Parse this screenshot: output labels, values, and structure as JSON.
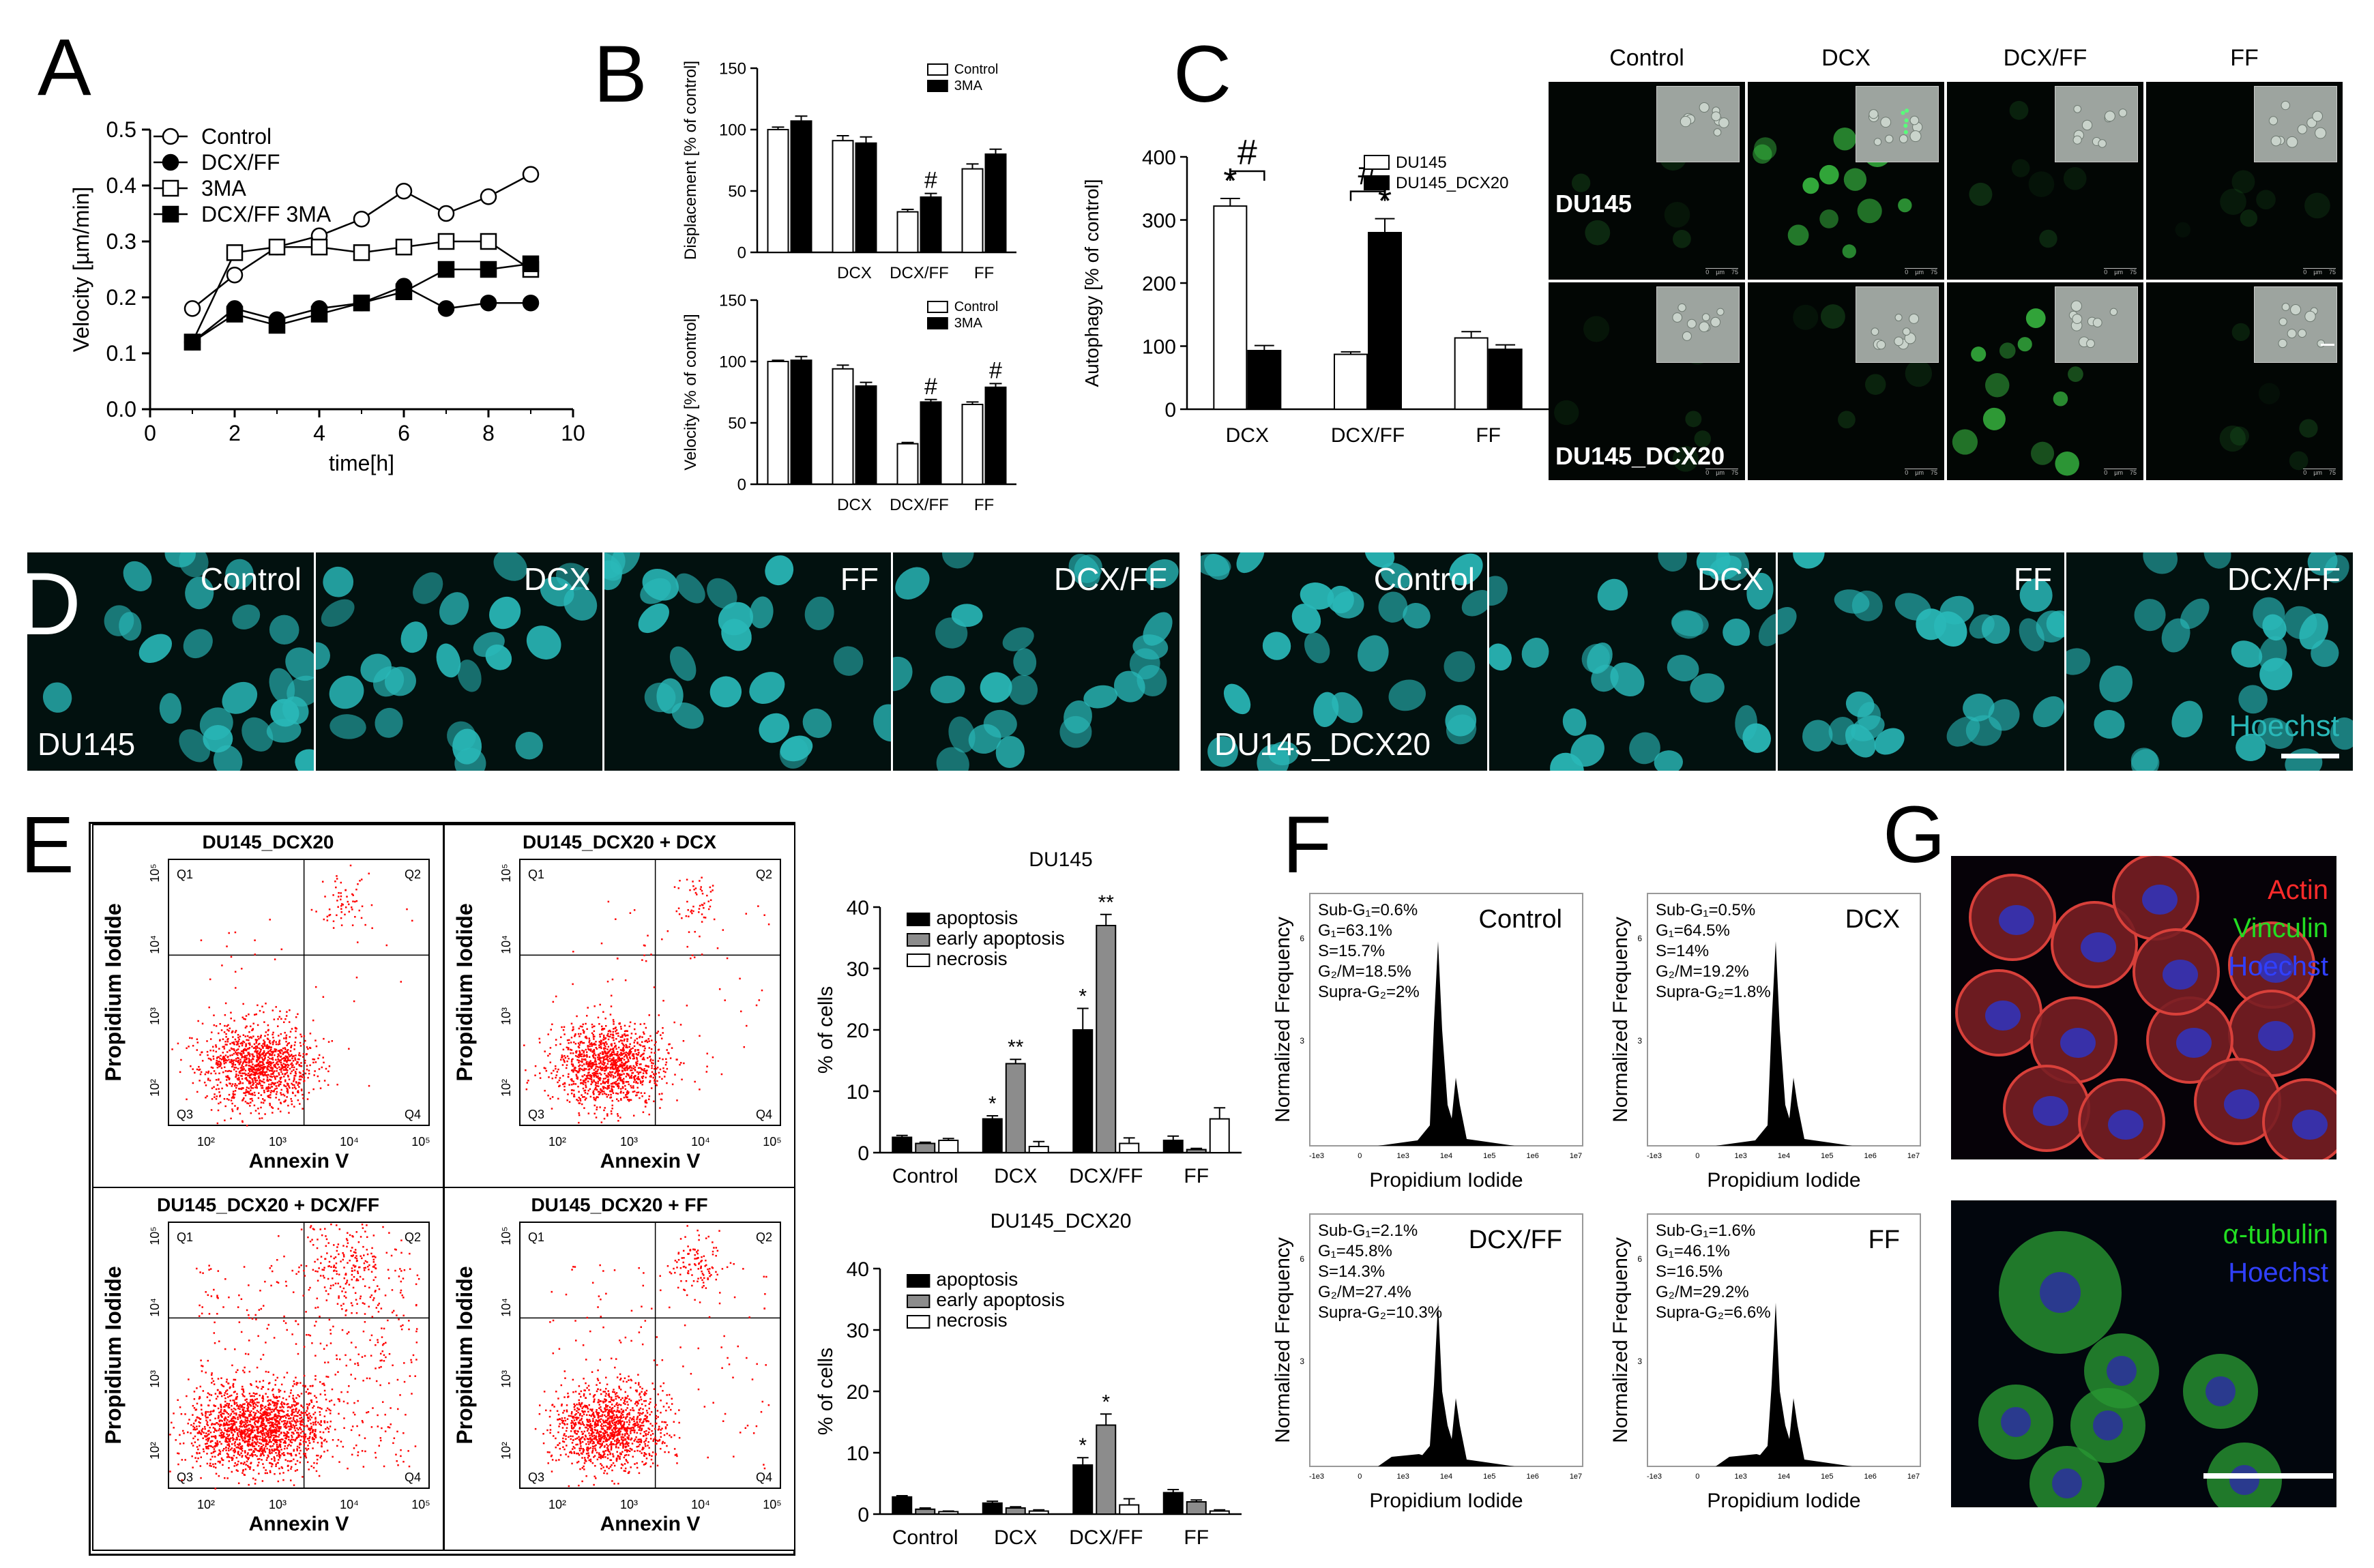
{
  "panels": {
    "A": "A",
    "B": "B",
    "C": "C",
    "D": "D",
    "E": "E",
    "F": "F",
    "G": "G"
  },
  "chart_data": [
    {
      "id": "A",
      "type": "line",
      "xlabel": "time[h]",
      "ylabel": "Velocity [µm/min]",
      "xlim": [
        0,
        10
      ],
      "ylim": [
        0,
        0.5
      ],
      "xticks": [
        0,
        2,
        4,
        6,
        8,
        10
      ],
      "yticks": [
        0.0,
        0.1,
        0.2,
        0.3,
        0.4,
        0.5
      ],
      "legend_position": "top-left",
      "series": [
        {
          "name": "Control",
          "marker": "open-circle",
          "x": [
            1,
            2,
            3,
            4,
            5,
            6,
            7,
            8,
            9
          ],
          "y": [
            0.18,
            0.24,
            0.29,
            0.31,
            0.34,
            0.39,
            0.35,
            0.38,
            0.42
          ]
        },
        {
          "name": "DCX/FF",
          "marker": "filled-circle",
          "x": [
            1,
            2,
            3,
            4,
            5,
            6,
            7,
            8,
            9
          ],
          "y": [
            0.12,
            0.18,
            0.16,
            0.18,
            0.19,
            0.22,
            0.18,
            0.19,
            0.19
          ]
        },
        {
          "name": "3MA",
          "marker": "open-square",
          "x": [
            1,
            2,
            3,
            4,
            5,
            6,
            7,
            8,
            9
          ],
          "y": [
            0.12,
            0.28,
            0.29,
            0.29,
            0.28,
            0.29,
            0.3,
            0.3,
            0.25
          ]
        },
        {
          "name": "DCX/FF 3MA",
          "marker": "filled-square",
          "x": [
            1,
            2,
            3,
            4,
            5,
            6,
            7,
            8,
            9
          ],
          "y": [
            0.12,
            0.17,
            0.15,
            0.17,
            0.19,
            0.21,
            0.25,
            0.25,
            0.26
          ]
        }
      ]
    },
    {
      "id": "B-top",
      "type": "bar",
      "ylabel": "Displacement [% of control]",
      "ylim": [
        0,
        150
      ],
      "yticks": [
        0,
        50,
        100,
        150
      ],
      "groups": [
        "",
        "DCX",
        "DCX/FF",
        "FF"
      ],
      "legend_position": "top-right",
      "series": [
        {
          "name": "Control",
          "values": [
            100,
            91,
            33,
            68
          ],
          "errors": [
            2,
            4,
            2,
            4
          ]
        },
        {
          "name": "3MA",
          "values": [
            107,
            89,
            45,
            80
          ],
          "errors": [
            4,
            5,
            3,
            4
          ]
        }
      ],
      "annotations": [
        {
          "group": 2,
          "series": 1,
          "text": "#"
        }
      ]
    },
    {
      "id": "B-bottom",
      "type": "bar",
      "ylabel": "Velocity [% of control]",
      "ylim": [
        0,
        150
      ],
      "yticks": [
        0,
        50,
        100,
        150
      ],
      "groups": [
        "",
        "DCX",
        "DCX/FF",
        "FF"
      ],
      "legend_position": "top-right",
      "series": [
        {
          "name": "Control",
          "values": [
            100,
            94,
            33,
            65
          ],
          "errors": [
            1,
            3,
            1,
            2
          ]
        },
        {
          "name": "3MA",
          "values": [
            101,
            80,
            67,
            79
          ],
          "errors": [
            3,
            3,
            2,
            3
          ]
        }
      ],
      "annotations": [
        {
          "group": 2,
          "series": 1,
          "text": "#"
        },
        {
          "group": 3,
          "series": 1,
          "text": "#"
        }
      ]
    },
    {
      "id": "C",
      "type": "bar",
      "ylabel": "Autophagy [% of control]",
      "ylim": [
        0,
        400
      ],
      "yticks": [
        0,
        100,
        200,
        300,
        400
      ],
      "groups": [
        "DCX",
        "DCX/FF",
        "FF"
      ],
      "legend_position": "top-right",
      "series": [
        {
          "name": "DU145",
          "values": [
            322,
            87,
            113
          ],
          "errors": [
            12,
            4,
            10
          ]
        },
        {
          "name": "DU145_DCX20",
          "values": [
            93,
            280,
            95
          ],
          "errors": [
            8,
            22,
            7
          ]
        }
      ],
      "annotations": [
        {
          "group": 0,
          "series": 0,
          "text": "*"
        },
        {
          "group": 1,
          "series": 1,
          "text": "*"
        },
        {
          "bracket": "group0",
          "text": "#"
        },
        {
          "bracket": "group1",
          "text": "#"
        }
      ]
    },
    {
      "id": "E-DU145",
      "type": "bar",
      "title": "DU145",
      "ylabel": "% of cells",
      "ylim": [
        0,
        40
      ],
      "yticks": [
        0,
        10,
        20,
        30,
        40
      ],
      "groups": [
        "Control",
        "DCX",
        "DCX/FF",
        "FF"
      ],
      "legend_position": "top-left",
      "series": [
        {
          "name": "apoptosis",
          "values": [
            2.5,
            5.5,
            20,
            2
          ],
          "errors": [
            0.3,
            0.5,
            3.5,
            0.7
          ]
        },
        {
          "name": "early apoptosis",
          "values": [
            1.5,
            14.5,
            37,
            0.5
          ],
          "errors": [
            0.2,
            0.7,
            1.8,
            0.2
          ]
        },
        {
          "name": "necrosis",
          "values": [
            2,
            1,
            1.5,
            5.5
          ],
          "errors": [
            0.3,
            0.8,
            0.9,
            1.8
          ]
        }
      ],
      "annotations": [
        {
          "group": 1,
          "series": 0,
          "text": "*"
        },
        {
          "group": 1,
          "series": 1,
          "text": "**"
        },
        {
          "group": 2,
          "series": 0,
          "text": "*"
        },
        {
          "group": 2,
          "series": 1,
          "text": "**"
        }
      ]
    },
    {
      "id": "E-DU145_DCX20",
      "type": "bar",
      "title": "DU145_DCX20",
      "ylabel": "% of cells",
      "ylim": [
        0,
        40
      ],
      "yticks": [
        0,
        10,
        20,
        30,
        40
      ],
      "groups": [
        "Control",
        "DCX",
        "DCX/FF",
        "FF"
      ],
      "legend_position": "top-left",
      "series": [
        {
          "name": "apoptosis",
          "values": [
            2.8,
            1.8,
            8,
            3.5
          ],
          "errors": [
            0.2,
            0.3,
            1.2,
            0.5
          ]
        },
        {
          "name": "early apoptosis",
          "values": [
            0.8,
            1,
            14.5,
            2
          ],
          "errors": [
            0.2,
            0.2,
            1.8,
            0.3
          ]
        },
        {
          "name": "necrosis",
          "values": [
            0.4,
            0.5,
            1.5,
            0.5
          ],
          "errors": [
            0.1,
            0.2,
            1,
            0.2
          ]
        }
      ],
      "annotations": [
        {
          "group": 2,
          "series": 0,
          "text": "*"
        },
        {
          "group": 2,
          "series": 1,
          "text": "*"
        }
      ]
    }
  ],
  "panelC_micro": {
    "columns": [
      "Control",
      "DCX",
      "DCX/FF",
      "FF"
    ],
    "rows": [
      "DU145",
      "DU145_DCX20"
    ],
    "scale_text": "0    µm    75"
  },
  "panelD": {
    "groups": [
      {
        "cell_line": "DU145",
        "conditions": [
          "Control",
          "DCX",
          "FF",
          "DCX/FF"
        ]
      },
      {
        "cell_line": "DU145_DCX20",
        "conditions": [
          "Control",
          "DCX",
          "FF",
          "DCX/FF"
        ]
      }
    ],
    "stain": "Hoechst",
    "stain_color": "#29b8b8"
  },
  "panelE_flow": {
    "plots": [
      {
        "title": "DU145_DCX20"
      },
      {
        "title": "DU145_DCX20 + DCX"
      },
      {
        "title": "DU145_DCX20 + DCX/FF"
      },
      {
        "title": "DU145_DCX20 +   FF"
      }
    ],
    "quadrants": [
      "Q1",
      "Q2",
      "Q3",
      "Q4"
    ],
    "xlabel": "Annexin V",
    "ylabel": "Propidium Iodide",
    "xticks": [
      "10²",
      "10³",
      "10⁴",
      "10⁵"
    ],
    "yticks": [
      "10²",
      "10³",
      "10⁴",
      "10⁵"
    ],
    "dot_color": "#ff0000"
  },
  "panelF": {
    "plots": [
      {
        "condition": "Control",
        "stats": [
          "Sub-G₁=0.6%",
          "G₁=63.1%",
          "S=15.7%",
          "G₂/M=18.5%",
          "Supra-G₂=2%"
        ]
      },
      {
        "condition": "DCX",
        "stats": [
          "Sub-G₁=0.5%",
          "G₁=64.5%",
          "S=14%",
          "G₂/M=19.2%",
          "Supra-G₂=1.8%"
        ]
      },
      {
        "condition": "DCX/FF",
        "stats": [
          "Sub-G₁=2.1%",
          "G₁=45.8%",
          "S=14.3%",
          "G₂/M=27.4%",
          "Supra-G₂=10.3%"
        ]
      },
      {
        "condition": "FF",
        "stats": [
          "Sub-G₁=1.6%",
          "G₁=46.1%",
          "S=16.5%",
          "G₂/M=29.2%",
          "Supra-G₂=6.6%"
        ]
      }
    ],
    "xlabel": "Propidium Iodide",
    "ylabel": "Normalized Frequency",
    "xticks": [
      "-1e3",
      "0",
      "1e3",
      "1e4",
      "1e5",
      "1e6",
      "1e7"
    ]
  },
  "panelG": {
    "top_labels": [
      {
        "text": "Actin",
        "color": "#ff2a2a"
      },
      {
        "text": "Vinculin",
        "color": "#22dd22"
      },
      {
        "text": "Hoechst",
        "color": "#3040ff"
      }
    ],
    "bottom_labels": [
      {
        "text": "α-tubulin",
        "color": "#22dd22"
      },
      {
        "text": "Hoechst",
        "color": "#3040ff"
      }
    ]
  }
}
